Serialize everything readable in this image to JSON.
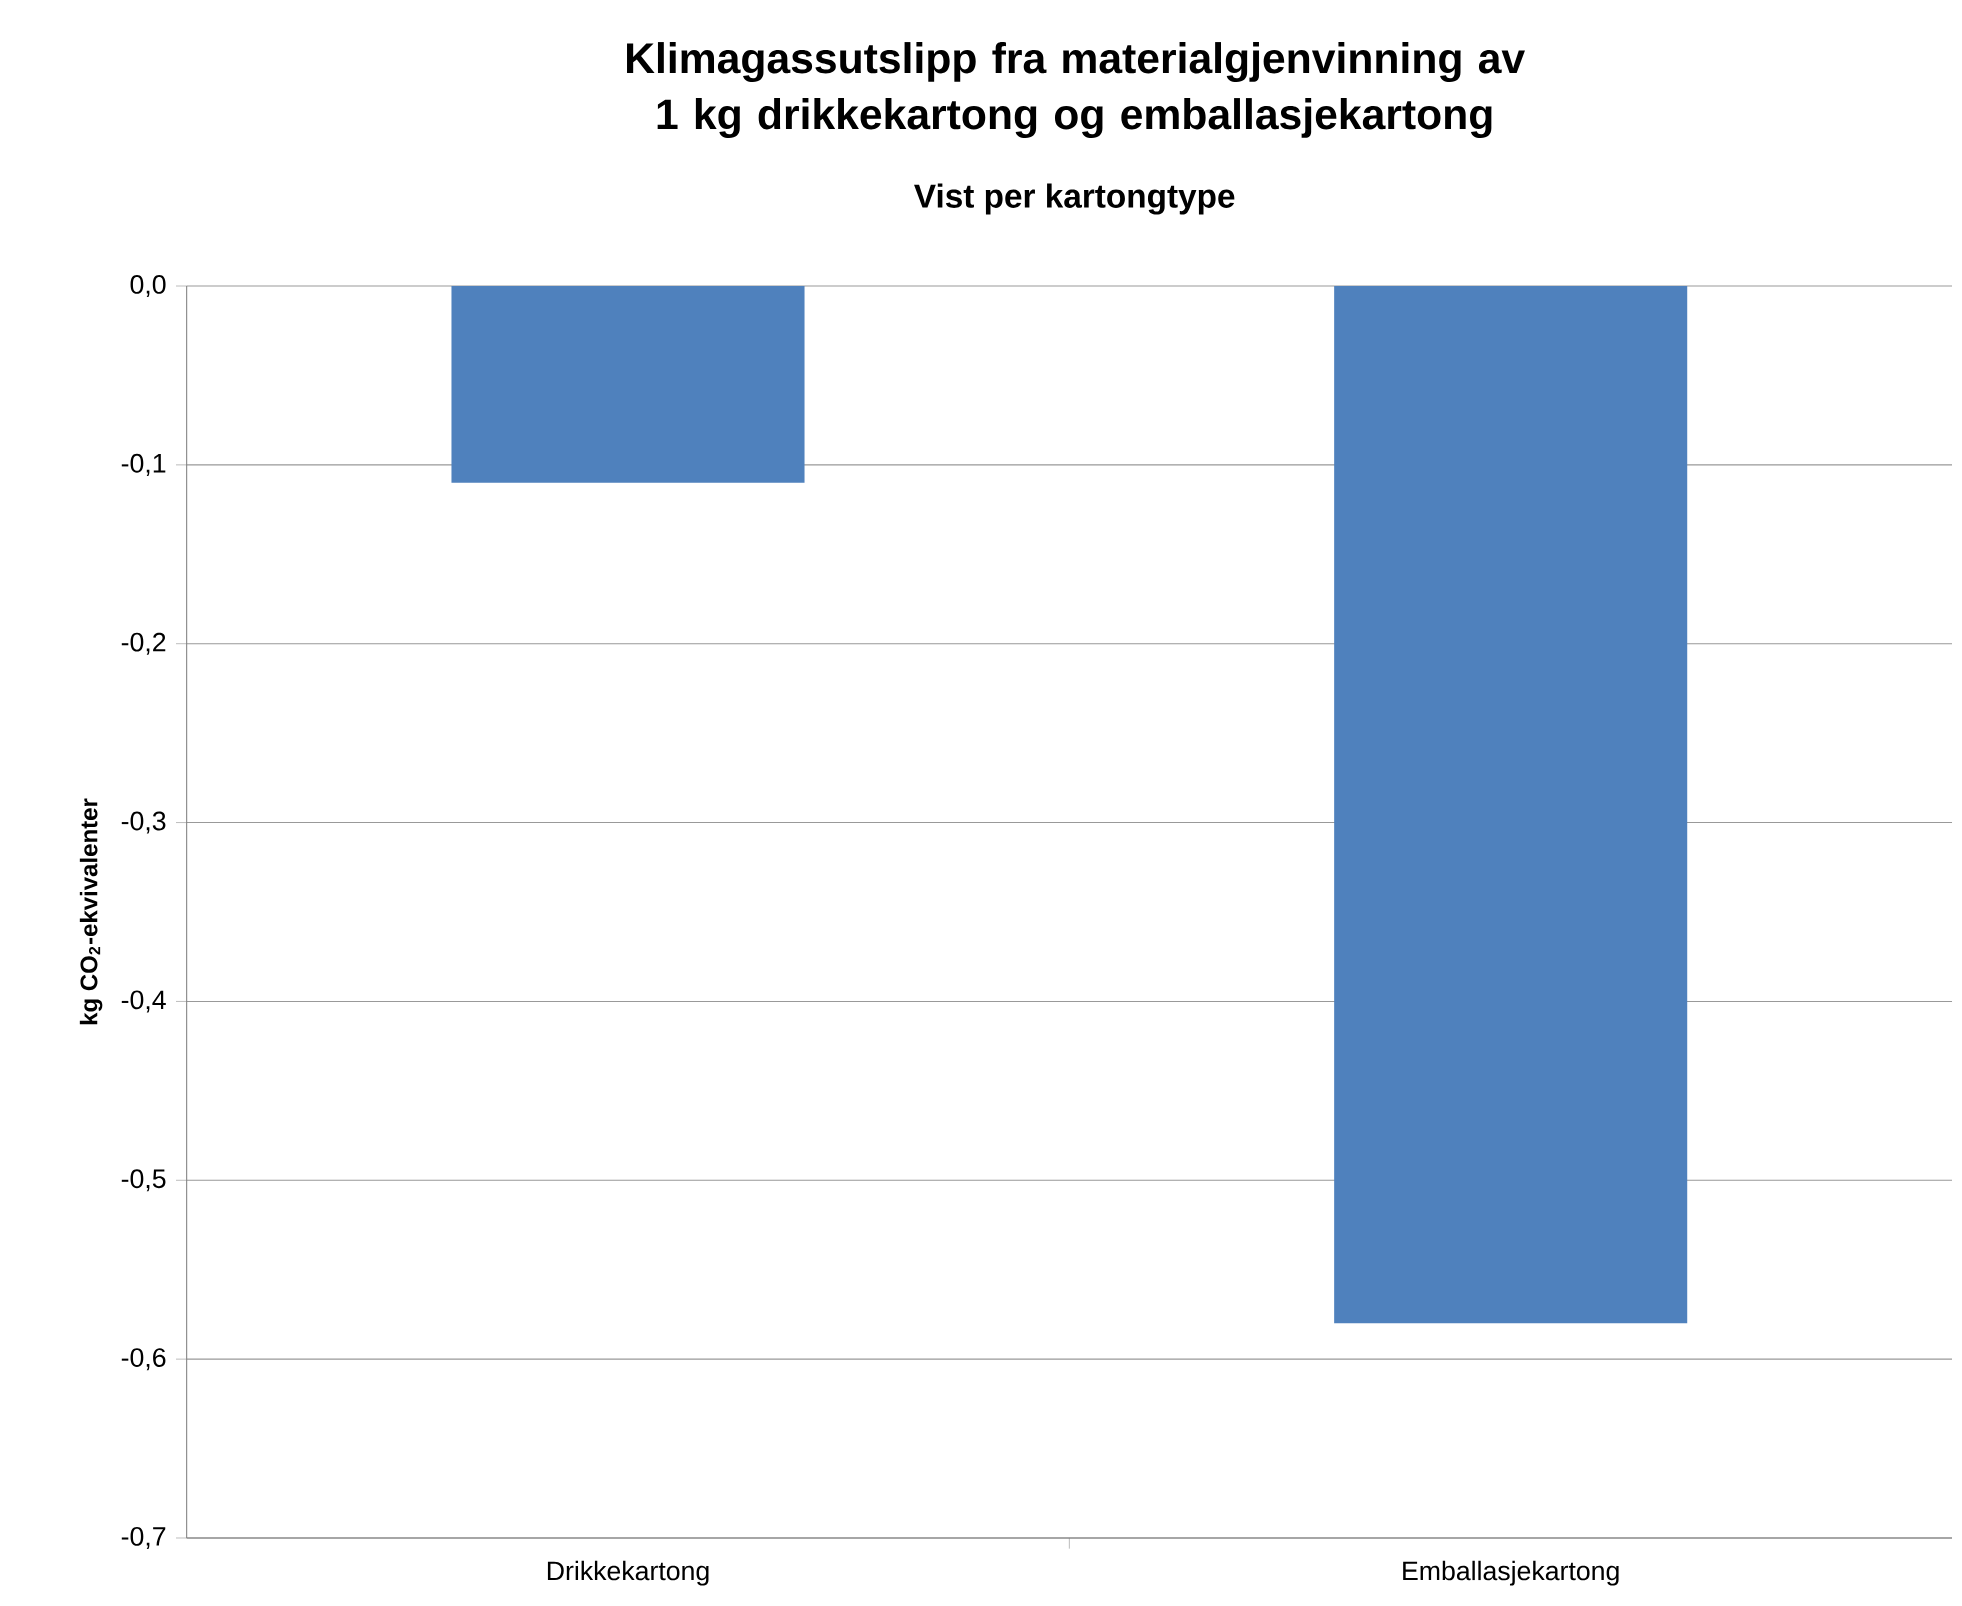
{
  "chart_data": {
    "type": "bar",
    "title": "Klimagassutslipp  fra materialgjenvinning  av 1 kg drikkekartong og emballasjekartong",
    "subtitle": "Vist per kartongtype",
    "ylabel": "kg CO$_{2}$-ekvivalenter",
    "categories": [
      "Drikkekartong",
      "Emballasjekartong"
    ],
    "values": [
      -0.11,
      -0.58
    ],
    "color": "#4f81bd",
    "ylim": [
      -0.7,
      0
    ],
    "yticks": [
      {
        "value": 0,
        "label": "0,0"
      },
      {
        "value": -0.1,
        "label": "-0,1"
      },
      {
        "value": -0.2,
        "label": "-0,2"
      },
      {
        "value": -0.3,
        "label": "-0,3"
      },
      {
        "value": -0.4,
        "label": "-0,4"
      },
      {
        "value": -0.5,
        "label": "-0,5"
      },
      {
        "value": -0.6,
        "label": "-0,6"
      },
      {
        "value": -0.7,
        "label": "-0,7"
      }
    ],
    "grid": "y"
  }
}
